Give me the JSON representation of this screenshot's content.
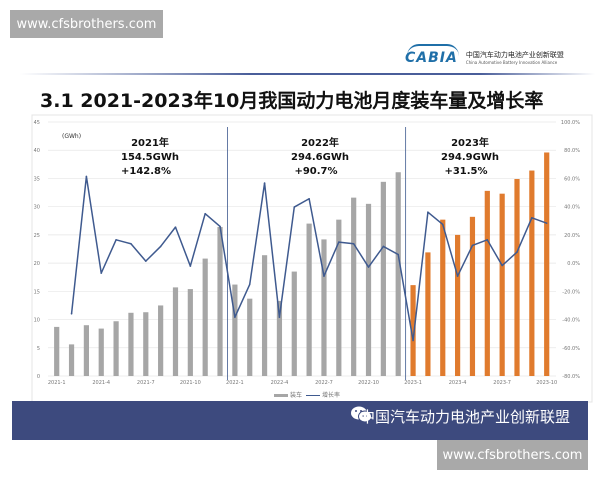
{
  "watermark_top": "www.cfsbrothers.com",
  "watermark_bottom": "www.cfsbrothers.com",
  "logo": {
    "mark": "CABIA",
    "cn": "中国汽车动力电池产业创新联盟",
    "en": "China Automotive Battery Innovation Alliance"
  },
  "title": "3.1  2021-2023年10月我国动力电池月度装车量及增长率",
  "footer": {
    "text": "中国汽车动力电池产业创新联盟",
    "icon": "wechat-icon"
  },
  "chart_data": {
    "type": "bar+line",
    "unit_label": "(GWh)",
    "categories": [
      "2021-1",
      "2021-2",
      "2021-3",
      "2021-4",
      "2021-5",
      "2021-6",
      "2021-7",
      "2021-8",
      "2021-9",
      "2021-10",
      "2021-11",
      "2021-12",
      "2022-1",
      "2022-2",
      "2022-3",
      "2022-4",
      "2022-5",
      "2022-6",
      "2022-7",
      "2022-8",
      "2022-9",
      "2022-10",
      "2022-11",
      "2022-12",
      "2023-1",
      "2023-2",
      "2023-3",
      "2023-4",
      "2023-5",
      "2023-6",
      "2023-7",
      "2023-8",
      "2023-9",
      "2023-10"
    ],
    "x_tick_labels": [
      "2021-1",
      "2021-4",
      "2021-7",
      "2021-10",
      "2022-1",
      "2022-4",
      "2022-7",
      "2022-10",
      "2023-1",
      "2023-4",
      "2023-7",
      "2023-10"
    ],
    "series": [
      {
        "name": "装车",
        "type": "bar",
        "axis": "left",
        "values": [
          8.7,
          5.6,
          9.0,
          8.4,
          9.7,
          11.2,
          11.3,
          12.5,
          15.7,
          15.4,
          20.8,
          26.4,
          16.2,
          13.7,
          21.4,
          13.3,
          18.5,
          27.0,
          24.2,
          27.7,
          31.6,
          30.5,
          34.4,
          36.1,
          16.1,
          21.9,
          27.7,
          25.0,
          28.2,
          32.8,
          32.3,
          34.9,
          36.4,
          39.6
        ]
      },
      {
        "name": "增长率",
        "type": "line",
        "axis": "right",
        "values": [
          null,
          -35.9,
          61.4,
          -7.1,
          16.5,
          13.7,
          1.4,
          11.8,
          25.5,
          -2.1,
          35.0,
          26.0,
          -38.3,
          -15.1,
          56.7,
          -38.3,
          39.7,
          45.6,
          -9.2,
          14.9,
          13.7,
          -2.8,
          11.8,
          6.1,
          -54.8,
          36.1,
          27.4,
          -9.2,
          12.5,
          16.5,
          -1.7,
          7.8,
          32.1,
          28.3
        ]
      }
    ],
    "left_axis": {
      "range": [
        0,
        45
      ],
      "ticks": [
        "0",
        "5",
        "10",
        "15",
        "20",
        "25",
        "30",
        "35",
        "40",
        "45"
      ]
    },
    "right_axis": {
      "range": [
        -80,
        100
      ],
      "ticks": [
        "-80.0%",
        "-60.0%",
        "-40.0%",
        "-20.0%",
        "0.0%",
        "20.0%",
        "40.0%",
        "60.0%",
        "80.0%",
        "100.0%"
      ]
    },
    "grid": "horizontal",
    "legend_position": "bottom",
    "colors": {
      "bar_2021_2022": "#a6a6a6",
      "bar_2023": "#e07b2e",
      "line": "#3f5a8f",
      "divider": "#3f5a8f"
    },
    "annotations": [
      {
        "year": "2021年",
        "total": "154.5GWh",
        "growth": "+142.8%"
      },
      {
        "year": "2022年",
        "total": "294.6GWh",
        "growth": "+90.7%"
      },
      {
        "year": "2023年",
        "total": "294.9GWh",
        "growth": "+31.5%"
      }
    ]
  }
}
